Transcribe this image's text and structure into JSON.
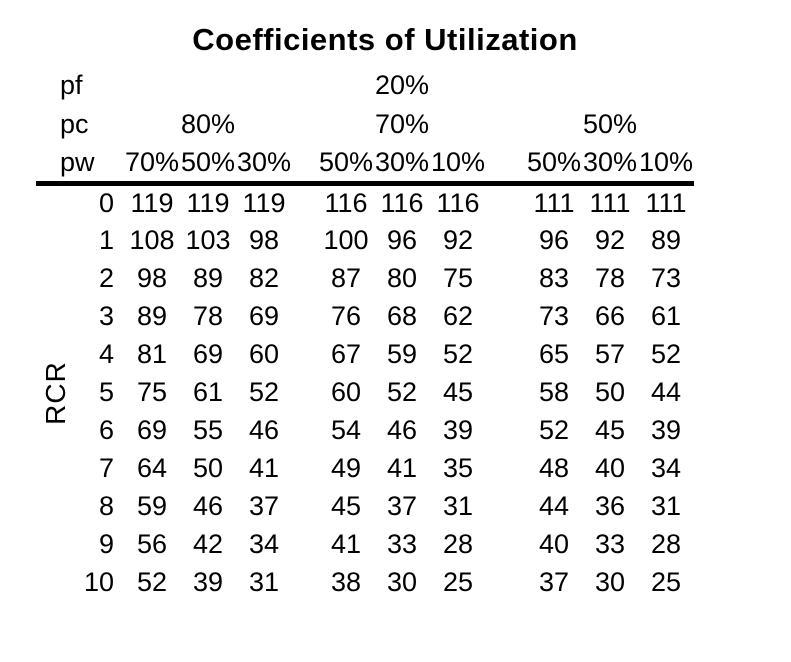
{
  "page": {
    "title": "Coefficients of Utilization",
    "row_axis_label": "RCR"
  },
  "header": {
    "pf_label": "pf",
    "pf_value": "20%",
    "pc_label": "pc",
    "pc_values": [
      "80%",
      "70%",
      "50%"
    ],
    "pw_label": "pw",
    "pw_values": [
      "70%",
      "50%",
      "30%",
      "50%",
      "30%",
      "10%",
      "50%",
      "30%",
      "10%"
    ]
  },
  "rows": [
    {
      "rcr": "0",
      "values": [
        "119",
        "119",
        "119",
        "116",
        "116",
        "116",
        "111",
        "111",
        "111"
      ]
    },
    {
      "rcr": "1",
      "values": [
        "108",
        "103",
        "98",
        "100",
        "96",
        "92",
        "96",
        "92",
        "89"
      ]
    },
    {
      "rcr": "2",
      "values": [
        "98",
        "89",
        "82",
        "87",
        "80",
        "75",
        "83",
        "78",
        "73"
      ]
    },
    {
      "rcr": "3",
      "values": [
        "89",
        "78",
        "69",
        "76",
        "68",
        "62",
        "73",
        "66",
        "61"
      ]
    },
    {
      "rcr": "4",
      "values": [
        "81",
        "69",
        "60",
        "67",
        "59",
        "52",
        "65",
        "57",
        "52"
      ]
    },
    {
      "rcr": "5",
      "values": [
        "75",
        "61",
        "52",
        "60",
        "52",
        "45",
        "58",
        "50",
        "44"
      ]
    },
    {
      "rcr": "6",
      "values": [
        "69",
        "55",
        "46",
        "54",
        "46",
        "39",
        "52",
        "45",
        "39"
      ]
    },
    {
      "rcr": "7",
      "values": [
        "64",
        "50",
        "41",
        "49",
        "41",
        "35",
        "48",
        "40",
        "34"
      ]
    },
    {
      "rcr": "8",
      "values": [
        "59",
        "46",
        "37",
        "45",
        "37",
        "31",
        "44",
        "36",
        "31"
      ]
    },
    {
      "rcr": "9",
      "values": [
        "56",
        "42",
        "34",
        "41",
        "33",
        "28",
        "40",
        "33",
        "28"
      ]
    },
    {
      "rcr": "10",
      "values": [
        "52",
        "39",
        "31",
        "38",
        "30",
        "25",
        "37",
        "30",
        "25"
      ]
    }
  ],
  "chart_data": {
    "type": "table",
    "title": "Coefficients of Utilization",
    "row_axis": "RCR",
    "pf": "20%",
    "column_groups": [
      {
        "pc": "80%",
        "pw": [
          "70%",
          "50%",
          "30%"
        ]
      },
      {
        "pc": "70%",
        "pw": [
          "50%",
          "30%",
          "10%"
        ]
      },
      {
        "pc": "50%",
        "pw": [
          "50%",
          "30%",
          "10%"
        ]
      }
    ],
    "rcr_values": [
      0,
      1,
      2,
      3,
      4,
      5,
      6,
      7,
      8,
      9,
      10
    ],
    "values": [
      [
        119,
        119,
        119,
        116,
        116,
        116,
        111,
        111,
        111
      ],
      [
        108,
        103,
        98,
        100,
        96,
        92,
        96,
        92,
        89
      ],
      [
        98,
        89,
        82,
        87,
        80,
        75,
        83,
        78,
        73
      ],
      [
        89,
        78,
        69,
        76,
        68,
        62,
        73,
        66,
        61
      ],
      [
        81,
        69,
        60,
        67,
        59,
        52,
        65,
        57,
        52
      ],
      [
        75,
        61,
        52,
        60,
        52,
        45,
        58,
        50,
        44
      ],
      [
        69,
        55,
        46,
        54,
        46,
        39,
        52,
        45,
        39
      ],
      [
        64,
        50,
        41,
        49,
        41,
        35,
        48,
        40,
        34
      ],
      [
        59,
        46,
        37,
        45,
        37,
        31,
        44,
        36,
        31
      ],
      [
        56,
        42,
        34,
        41,
        33,
        28,
        40,
        33,
        28
      ],
      [
        52,
        39,
        31,
        38,
        30,
        25,
        37,
        30,
        25
      ]
    ]
  }
}
